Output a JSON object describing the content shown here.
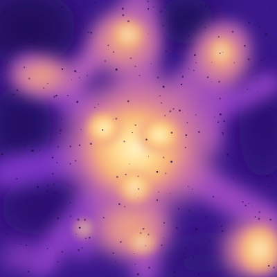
{
  "image": {
    "subject": "density-field-visualization",
    "colormap": [
      "#1a0a4a",
      "#3c1a8a",
      "#7a34c4",
      "#b45fb9",
      "#e08a98",
      "#f6b179",
      "#ffd98f",
      "#fff2c4"
    ],
    "background_color": "#2a0f6b",
    "speckle_color": "#2b0b4e"
  }
}
